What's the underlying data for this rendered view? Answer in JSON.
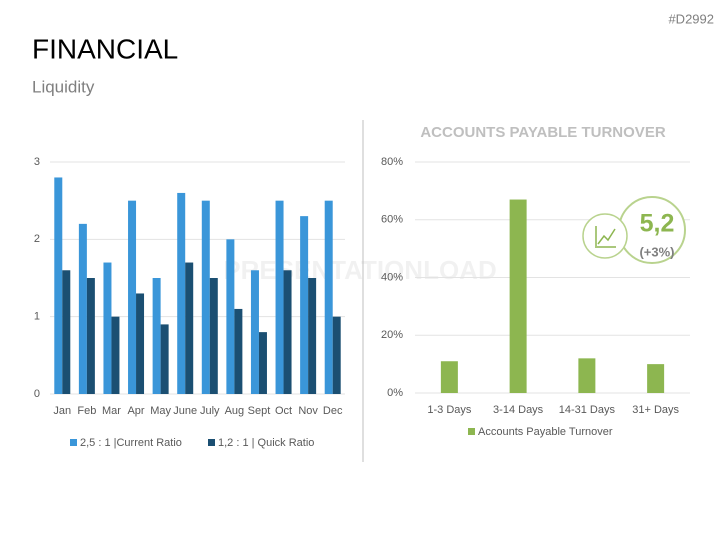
{
  "header": {
    "id": "#D2992",
    "title": "FINANCIAL",
    "subtitle": "Liquidity"
  },
  "watermark": "PRESENTATIONLOAD",
  "callout": {
    "value": "5,2",
    "change": "(+3%)"
  },
  "chart_data": [
    {
      "type": "bar",
      "categories": [
        "Jan",
        "Feb",
        "Mar",
        "Apr",
        "May",
        "June",
        "July",
        "Aug",
        "Sept",
        "Oct",
        "Nov",
        "Dec"
      ],
      "series": [
        {
          "name": "2,5 : 1 |Current Ratio",
          "color": "#3a96d9",
          "values": [
            2.8,
            2.2,
            1.7,
            2.5,
            1.5,
            2.6,
            2.5,
            2.0,
            1.6,
            2.5,
            2.3,
            2.5
          ]
        },
        {
          "name": "1,2 : 1 | Quick Ratio",
          "color": "#1b4f72",
          "values": [
            1.6,
            1.5,
            1.0,
            1.3,
            0.9,
            1.7,
            1.5,
            1.1,
            0.8,
            1.6,
            1.5,
            1.0
          ]
        }
      ],
      "ylim": [
        0,
        3
      ],
      "yticks": [
        0,
        1,
        2,
        3
      ],
      "grid": true
    },
    {
      "type": "bar",
      "title": "ACCOUNTS PAYABLE TURNOVER",
      "categories": [
        "1-3 Days",
        "3-14 Days",
        "14-31 Days",
        "31+ Days"
      ],
      "series": [
        {
          "name": "Accounts Payable Turnover",
          "color": "#8db650",
          "values": [
            11,
            67,
            12,
            10
          ]
        }
      ],
      "ylim": [
        0,
        80
      ],
      "yticks": [
        {
          "value": 0,
          "label": "0%"
        },
        {
          "value": 20,
          "label": "20%"
        },
        {
          "value": 40,
          "label": "40%"
        },
        {
          "value": 60,
          "label": "60%"
        },
        {
          "value": 80,
          "label": "80%"
        }
      ],
      "grid": true
    }
  ]
}
